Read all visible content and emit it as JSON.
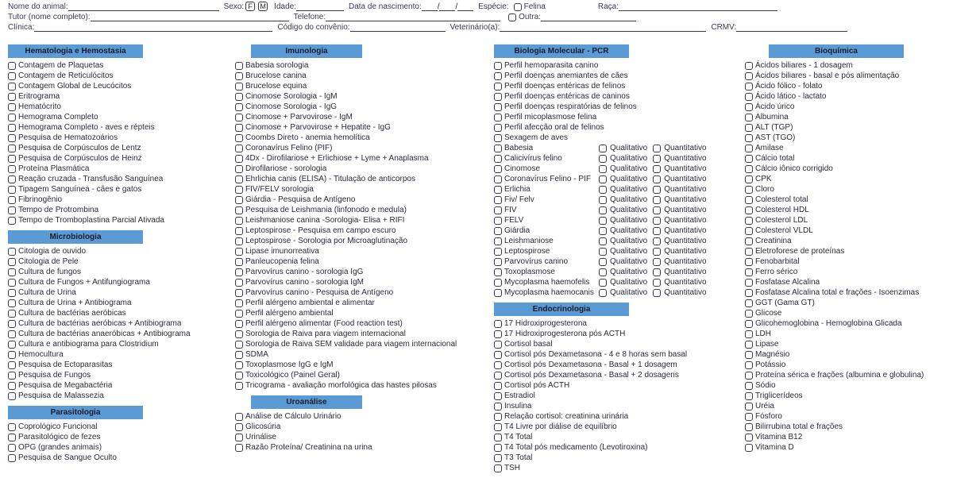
{
  "header": {
    "row1": {
      "nome_animal_label": "Nome do animal:",
      "sexo_label": "Sexo:",
      "sexo_f": "F",
      "sexo_m": "M",
      "idade_label": "Idade:",
      "datanasc_label": "Data de nascimento:",
      "date_sep1": "/",
      "date_sep2": "/",
      "especie_label": "Espécie:",
      "felina_label": "Felina",
      "outra_label": "Outra:",
      "raca_label": "Raça:"
    },
    "row2": {
      "tutor_label": "Tutor (nome completo):",
      "telefone_label": "Telefone:"
    },
    "row3": {
      "clinica_label": "Clínica:",
      "codigo_label": "Código do convênio:",
      "veterinario_label": "Veterinário(a):",
      "crmv_label": "CRMV:"
    }
  },
  "sections": {
    "hematologia": {
      "title": "Hematologia e Hemostasia",
      "items": [
        "Contagem de Plaquetas",
        "Contagem de Reticulócitos",
        "Contagem Global de Leucócitos",
        "Eritrograma",
        "Hematócrito",
        "Hemograma Completo",
        "Hemograma Completo - aves e répteis",
        "Pesquisa de Hematozoários",
        "Pesquisa de Corpúsculos de Lentz",
        "Pesquisa de Corpúsculos de Heinz",
        "Proteína Plasmática",
        "Reação cruzada - Transfusão Sanguínea",
        "Tipagem Sanguínea - cães e gatos",
        "Fibrinogênio",
        "Tempo de Protrombina",
        "Tempo de Tromboplastina Parcial Ativada"
      ]
    },
    "microbiologia": {
      "title": "Microbiologia",
      "items": [
        "Citologia de ouvido",
        "Citologia de Pele",
        "Cultura de fungos",
        "Cultura de Fungos + Antifungiograma",
        "Cultura de Urina",
        "Cultura de Urina + Antibiograma",
        "Cultura de bactérias aeróbicas",
        "Cultura de bactérias aeróbicas + Antibiograma",
        "Cultura de bactérias anaeróbicas + Antibiograma",
        "Cultura e antibiograma para Clostridium",
        "Hemocultura",
        "Pesquisa de Ectoparasitas",
        "Pesquisa de Fungos",
        "Pesquisa de Megabactéria",
        "Pesquisa de Malassezia"
      ]
    },
    "parasitologia": {
      "title": "Parasitologia",
      "items": [
        "Coprológico Funcional",
        "Parasitológico de fezes",
        "OPG (grandes animais)",
        "Pesquisa de Sangue Oculto"
      ]
    },
    "imunologia": {
      "title": "Imunologia",
      "items": [
        "Babesia sorologia",
        "Brucelose canina",
        "Brucelose equina",
        "Cinomose Sorologia - IgM",
        "Cinomose Sorologia - IgG",
        "Cinomose + Parvovirose - IgM",
        "Cinomose + Parvovirose + Hepatite - IgG",
        "Coombs Direto - anemia hemolítica",
        "Coronavírus Felino (PIF)",
        "4Dx - Dirofilariose + Erlichiose + Lyme + Anaplasma",
        "Dirofilariose - sorologia",
        "Ehrlichia canis (ELISA) - Titulação de anticorpos",
        "FIV/FELV sorologia",
        "Giárdia - Pesquisa de Antígeno",
        "Pesquisa de Leishmania (linfonodo e medula)",
        "Leishmaniose canina -Sorologia- Elisa + RIFI",
        "Leptospirose - Pesquisa em campo escuro",
        "Leptospirose - Sorologia por Microaglutinação",
        "Lipase imunorreativa",
        "Panleucopenia felina",
        "Parvovírus canino - sorologia IgG",
        "Parvovírus canino - sorologia IgM",
        "Parvovírus canino - Pesquisa de Antígeno",
        "Perfil alérgeno ambiental e alimentar",
        "Perfil alérgeno ambiental",
        "Perfil alérgeno alimentar (Food reaction test)",
        "Sorologia de Raiva para viagem internacional",
        "Sorologia de Raiva SEM validade para viagem internacional",
        "SDMA",
        "Toxoplasmose IgG e IgM",
        "Toxicológico (Painel Geral)",
        "Tricograma - avaliação morfológica das hastes pilosas"
      ]
    },
    "uroanalise": {
      "title": "Uroanálise",
      "items": [
        "Análise de Cálculo Urinário",
        "Glicosúria",
        "Urinálise",
        "Razão Proteína/ Creatinina na urina"
      ]
    },
    "pcr": {
      "title": "Biologia Molecular - PCR",
      "plain_items": [
        "Perfil hemoparasita canino",
        "Perfil doenças anemiantes de cães",
        "Perfil doenças entéricas de felinos",
        "Perfil doenças entéricas de caninos",
        "Perfil doenças respiratórias de felinos",
        "Perfil micoplasmose felina",
        "Perfil afecção oral de felinos",
        "Sexagem de aves"
      ],
      "qualquant_label_qual": "Qualitativo",
      "qualquant_label_quant": "Quantitativo",
      "qualquant_items": [
        "Babesia",
        "Calicivírus felino",
        "Cinomose",
        "Coronavírus Felino - PIF",
        "Erlichia",
        "Fiv/ Felv",
        "FIV",
        "FELV",
        "Giárdia",
        "Leishmaniose",
        "Leptospirose",
        "Parvovírus canino",
        "Toxoplasmose",
        "Mycoplasma haemofelis",
        "Mycoplasma haemocanis"
      ]
    },
    "endocrinologia": {
      "title": "Endocrinologia",
      "items": [
        "17 Hidroxiprogesterona",
        "17 Hidroxiprogesterona pós ACTH",
        "Cortisol basal",
        "Cortisol pós Dexametasona - 4 e 8 horas sem basal",
        "Cortisol pós Dexametasona - Basal + 1 dosagem",
        "Cortisol pós Dexametasona - Basal + 2 dosagens",
        "Cortisol pós ACTH",
        "Estradiol",
        "Insulina",
        "Relação cortisol: creatinina urinária",
        "T4 Livre por diálise de equilíbrio",
        "T4 Total",
        "T4 Total pós medicamento (Levotiroxina)",
        "T3 Total",
        "TSH"
      ]
    },
    "bioquimica": {
      "title": "Bioquímica",
      "items": [
        "Ácidos biliares - 1 dosagem",
        "Ácidos biliares - basal e pós alimentação",
        "Ácido fólico - folato",
        "Ácido lático - lactato",
        "Ácido úrico",
        "Albumina",
        "ALT (TGP)",
        "AST (TGO)",
        "Amilase",
        "Cálcio total",
        "Cálcio iônico corrigido",
        "CPK",
        "Cloro",
        "Colesterol total",
        "Colesterol HDL",
        "Colesterol LDL",
        "Colesterol VLDL",
        "Creatinina",
        "Eletroforese de proteínas",
        "Fenobarbital",
        "Ferro sérico",
        "Fosfatase Alcalina",
        "Fosfatase Alcalina total e frações - Isoenzimas",
        "GGT (Gama GT)",
        "Glicose",
        "Glicohemoglobina - Hemoglobina Glicada",
        "LDH",
        "Lipase",
        "Magnésio",
        "Potássio",
        "Proteína sérica e frações (albumina e globulina)",
        "Sódio",
        "Triglicerídeos",
        "Uréia",
        "Fósforo",
        "Bilirrubina total e frações",
        "Vitamina B12",
        "Vitamina D"
      ]
    }
  }
}
